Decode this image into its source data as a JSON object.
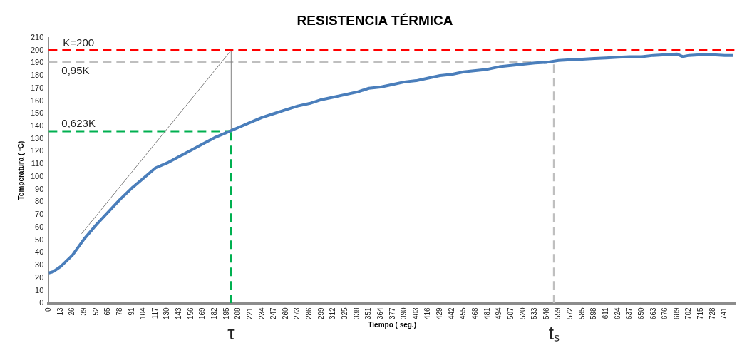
{
  "chart_data": {
    "type": "line",
    "title": "RESISTENCIA TÉRMICA",
    "xlabel": "Tiempo ( seg.)",
    "ylabel": "Temperatura ( ºC)",
    "x": [
      0,
      5,
      13,
      26,
      39,
      52,
      65,
      78,
      91,
      104,
      117,
      130,
      143,
      156,
      169,
      182,
      195,
      208,
      221,
      234,
      247,
      260,
      273,
      286,
      299,
      312,
      325,
      338,
      351,
      364,
      377,
      390,
      403,
      416,
      429,
      442,
      455,
      468,
      481,
      494,
      507,
      520,
      533,
      546,
      559,
      572,
      585,
      598,
      611,
      624,
      637,
      650,
      663,
      676,
      689,
      695,
      702,
      715,
      728,
      741,
      750
    ],
    "series": [
      {
        "color": "#4a7ebb",
        "values": [
          24,
          25,
          29,
          38,
          51,
          62,
          72,
          82,
          91,
          99,
          107,
          111,
          116,
          121,
          126,
          131,
          135,
          139,
          143,
          147,
          150,
          153,
          156,
          158,
          161,
          163,
          165,
          167,
          170,
          171,
          173,
          175,
          176,
          178,
          180,
          181,
          183,
          184,
          185,
          187,
          188,
          189,
          190,
          190.5,
          192,
          192.5,
          193,
          193.5,
          194,
          194.5,
          195,
          195,
          196,
          196.5,
          197,
          195,
          196,
          196.5,
          196.5,
          196,
          196
        ]
      },
      {
        "type": "line",
        "color": "#808080",
        "x": [
          36,
          200
        ],
        "values": [
          55,
          200
        ]
      },
      {
        "type": "line",
        "color": "#808080",
        "x": [
          200,
          200
        ],
        "values": [
          136,
          200
        ]
      },
      {
        "type": "line",
        "color": "#bfbfbf",
        "line_style": "dashed",
        "x": [
          0,
          554
        ],
        "values": [
          191,
          191
        ]
      },
      {
        "type": "line",
        "color": "#bfbfbf",
        "line_style": "dashed",
        "x": [
          554,
          554
        ],
        "values": [
          0,
          191
        ]
      },
      {
        "type": "line",
        "color": "#00b050",
        "line_style": "dashed",
        "x": [
          0,
          200
        ],
        "values": [
          136,
          136
        ]
      },
      {
        "type": "line",
        "color": "#00b050",
        "line_style": "dashed",
        "x": [
          200,
          200
        ],
        "values": [
          0,
          136
        ]
      }
    ],
    "ref_lines": [
      {
        "axis": "y",
        "value": 200,
        "label": "K=200",
        "color": "#ff0000",
        "line_style": "dashed"
      }
    ],
    "annotations": [
      {
        "text": "0,95K",
        "x": 0,
        "y": 191
      },
      {
        "text": "0,623K",
        "x": 0,
        "y": 136
      },
      {
        "text": "τ",
        "x": 200,
        "y": 0
      },
      {
        "text": "tₛ",
        "x": 554,
        "y": 0
      }
    ],
    "xlim": [
      0,
      753
    ],
    "xticks": [
      0,
      13,
      26,
      39,
      52,
      65,
      78,
      91,
      104,
      117,
      130,
      143,
      156,
      169,
      182,
      195,
      208,
      221,
      234,
      247,
      260,
      273,
      286,
      299,
      312,
      325,
      338,
      351,
      364,
      377,
      390,
      403,
      416,
      429,
      442,
      455,
      468,
      481,
      494,
      507,
      520,
      533,
      546,
      559,
      572,
      585,
      598,
      611,
      624,
      637,
      650,
      663,
      676,
      689,
      702,
      715,
      728,
      741
    ],
    "ylim": [
      0,
      210
    ],
    "yticks": [
      0,
      10,
      20,
      30,
      40,
      50,
      60,
      70,
      80,
      90,
      100,
      110,
      120,
      130,
      140,
      150,
      160,
      170,
      180,
      190,
      200,
      210
    ],
    "grid": false,
    "legend": false,
    "marker": "none",
    "line_style": "solid"
  }
}
